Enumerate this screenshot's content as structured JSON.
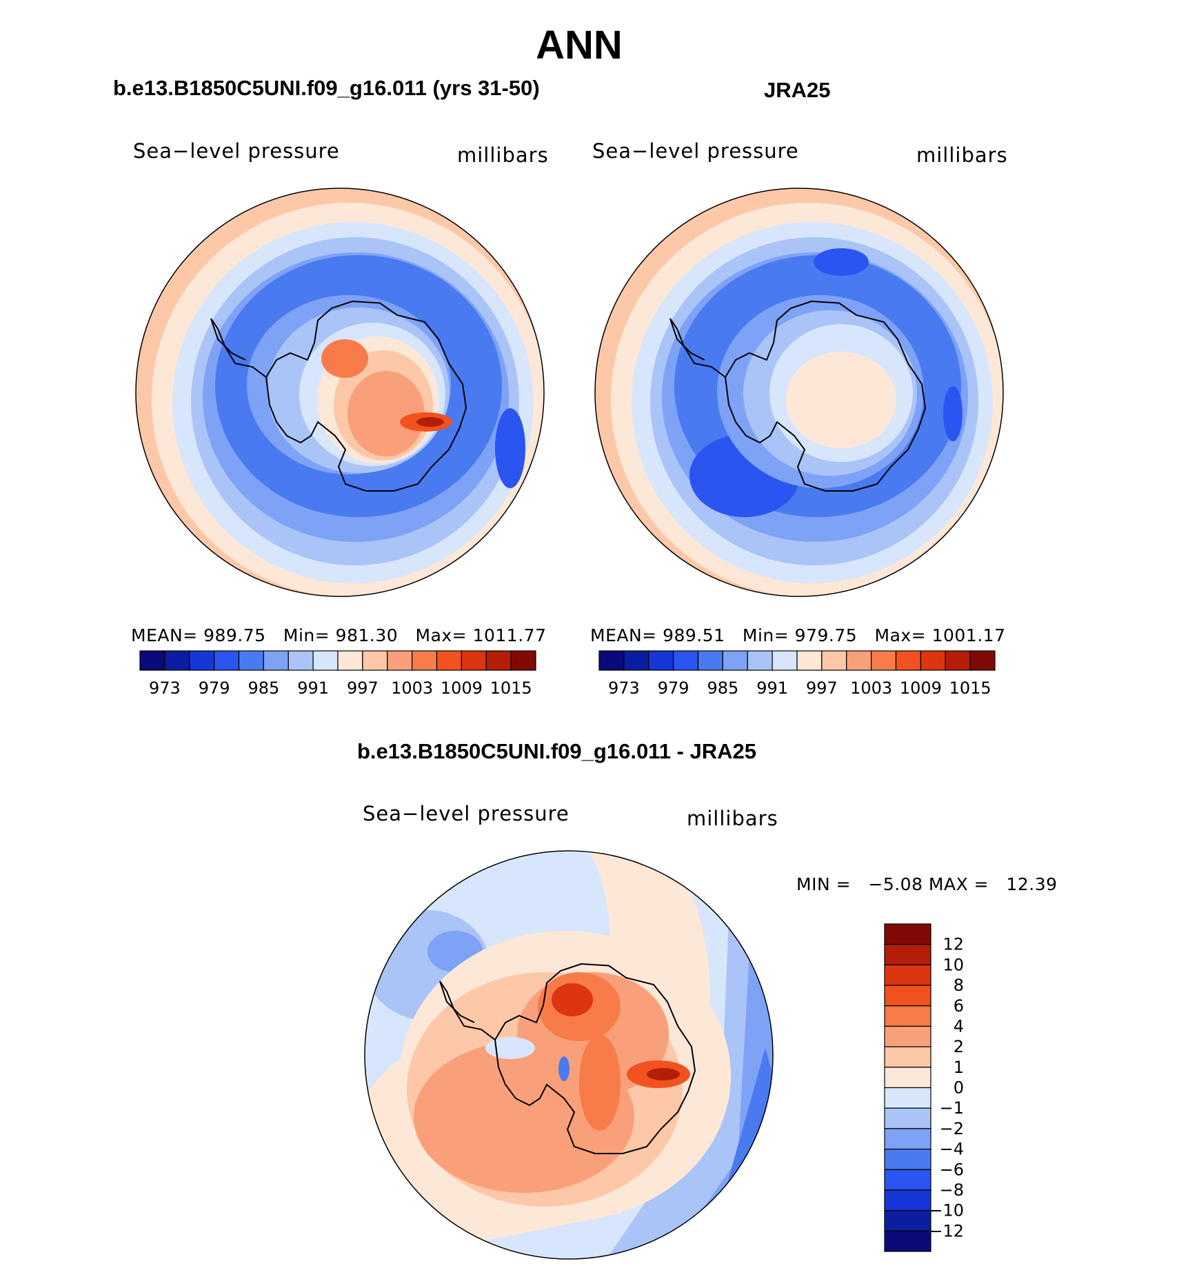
{
  "title": "ANN",
  "panels": [
    {
      "title": "b.e13.B1850C5UNI.f09_g16.011 (yrs 31-50)",
      "variable": "Sea−level pressure",
      "units": "millibars",
      "stats": {
        "mean_label": "MEAN=",
        "mean": "989.75",
        "min_label": "Min=",
        "min": "981.30",
        "max_label": "Max=",
        "max": "1011.77"
      }
    },
    {
      "title": "JRA25",
      "variable": "Sea−level pressure",
      "units": "millibars",
      "stats": {
        "mean_label": "MEAN=",
        "mean": "989.51",
        "min_label": "Min=",
        "min": "979.75",
        "max_label": "Max=",
        "max": "1001.17"
      }
    }
  ],
  "difference": {
    "title": "b.e13.B1850C5UNI.f09_g16.011 - JRA25",
    "variable": "Sea−level pressure",
    "units": "millibars",
    "minmax_text": "MIN =   −5.08 MAX =   12.39"
  },
  "colorbar_horizontal": {
    "colors": [
      "#0a0a7a",
      "#0c1ea0",
      "#1637d6",
      "#2a55f0",
      "#4a7af0",
      "#7ea2f6",
      "#aac4f8",
      "#d8e6fb",
      "#fde8d8",
      "#fcc8a8",
      "#f9a07a",
      "#f77c4a",
      "#f2521e",
      "#dc3510",
      "#b41e08",
      "#820a04"
    ],
    "tick_labels": [
      "973",
      "979",
      "985",
      "991",
      "997",
      "1003",
      "1009",
      "1015"
    ]
  },
  "colorbar_vertical": {
    "colors_top_to_bottom": [
      "#820a04",
      "#b41e08",
      "#dc3510",
      "#f2521e",
      "#f77c4a",
      "#f9a07a",
      "#fcc8a8",
      "#fde8d8",
      "#d8e6fb",
      "#aac4f8",
      "#7ea2f6",
      "#4a7af0",
      "#2a55f0",
      "#1637d6",
      "#0c1ea0",
      "#0a0a7a"
    ],
    "tick_labels": [
      "12",
      "10",
      "8",
      "6",
      "4",
      "2",
      "1",
      "0",
      "−1",
      "−2",
      "−4",
      "−6",
      "−8",
      "−10",
      "−12"
    ]
  }
}
